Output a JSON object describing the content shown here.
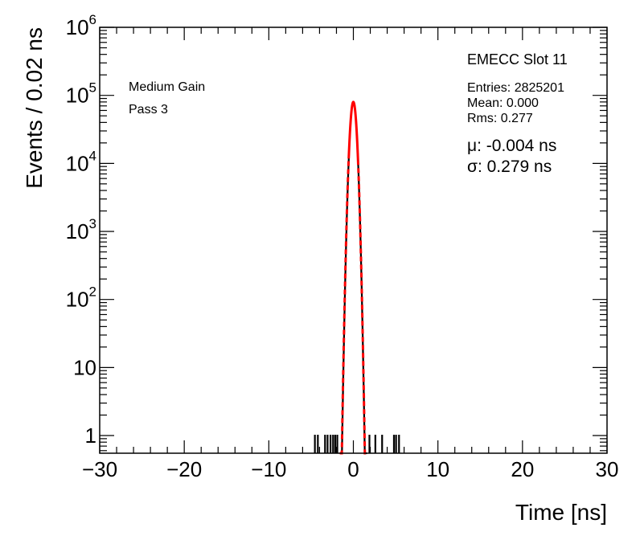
{
  "chart_data": {
    "type": "histogram",
    "title": "",
    "xlabel": "Time [ns]",
    "ylabel": "Events / 0.02 ns",
    "xlim": [
      -30,
      30
    ],
    "ylim": [
      0.55,
      1000000
    ],
    "yscale": "log",
    "grid": false,
    "x_ticks": [
      -30,
      -20,
      -10,
      0,
      10,
      20,
      30
    ],
    "x_tick_labels": [
      "−30",
      "−20",
      "−10",
      "0",
      "10",
      "20",
      "30"
    ],
    "y_ticks": [
      1,
      10,
      100,
      1000,
      10000,
      100000,
      1000000
    ],
    "y_tick_labels": [
      {
        "base": "1",
        "exp": ""
      },
      {
        "base": "10",
        "exp": ""
      },
      {
        "base": "10",
        "exp": "2"
      },
      {
        "base": "10",
        "exp": "3"
      },
      {
        "base": "10",
        "exp": "4"
      },
      {
        "base": "10",
        "exp": "5"
      },
      {
        "base": "10",
        "exp": "6"
      }
    ],
    "stats_box": {
      "name": "EMECC Slot 11",
      "entries": "Entries: 2825201",
      "mean": "Mean: 0.000",
      "rms": "Rms: 0.277"
    },
    "fit_text": {
      "mu": "μ: -0.004 ns",
      "sigma": "σ: 0.279 ns"
    },
    "annotations": [
      "Medium Gain",
      "Pass 3"
    ],
    "histogram": {
      "color": "#000000",
      "bin_width": 0.02,
      "core_mean": 0.0,
      "core_sigma": 0.277,
      "core_peak": 80000,
      "core_range": [
        -1.6,
        1.6
      ],
      "outlier_bins": [
        {
          "x": -4.55,
          "y": 1
        },
        {
          "x": -4.2,
          "y": 1
        },
        {
          "x": -3.35,
          "y": 1
        },
        {
          "x": -3.05,
          "y": 1
        },
        {
          "x": -2.7,
          "y": 1
        },
        {
          "x": -2.4,
          "y": 1
        },
        {
          "x": -2.15,
          "y": 1
        },
        {
          "x": -1.9,
          "y": 1
        },
        {
          "x": 1.9,
          "y": 1
        },
        {
          "x": 2.6,
          "y": 1
        },
        {
          "x": 3.4,
          "y": 1
        },
        {
          "x": 4.8,
          "y": 1
        },
        {
          "x": 5.05,
          "y": 1
        },
        {
          "x": 5.4,
          "y": 1
        }
      ]
    },
    "fit": {
      "color": "#ff0000",
      "style": "solid-core-dashed-tails",
      "mean": -0.004,
      "sigma": 0.279,
      "peak": 80000,
      "solid_range": [
        -0.55,
        0.55
      ],
      "draw_range": [
        -1.6,
        1.6
      ]
    }
  }
}
